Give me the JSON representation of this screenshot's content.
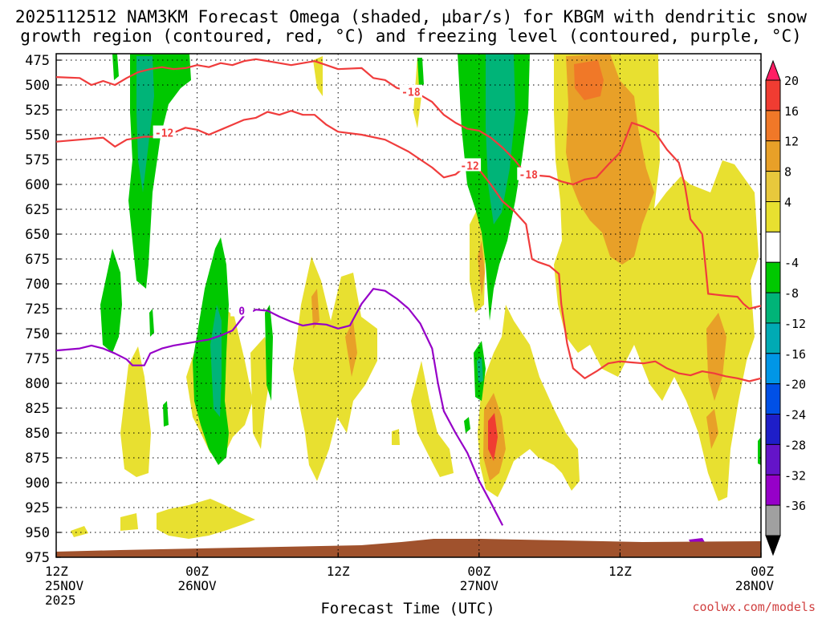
{
  "title_line1": "2025112512 NAM3KM Forecast Omega (shaded, µbar/s) for KBGM with dendritic snow",
  "title_line2": "growth region (contoured, red, °C) and freezing level (contoured, purple, °C)",
  "xlabel": "Forecast Time (UTC)",
  "credit": "coolwx.com/models",
  "chart_data": {
    "type": "heatmap",
    "title": "2025112512 NAM3KM Forecast Omega (shaded, µbar/s) for KBGM with dendritic snow growth region (contoured, red, °C) and freezing level (contoured, purple, °C)",
    "xlabel": "Forecast Time (UTC)",
    "ylabel": "",
    "x_range_hours": [
      0,
      60
    ],
    "y_axis": {
      "ticks_hPa": [
        475,
        500,
        525,
        550,
        575,
        600,
        625,
        650,
        675,
        700,
        725,
        750,
        775,
        800,
        825,
        850,
        875,
        900,
        925,
        950,
        975
      ],
      "ylim": [
        975,
        475
      ],
      "direction": "pressure decreasing upward"
    },
    "x_ticks": [
      {
        "h": 0,
        "line1": "12Z",
        "line2": "25NOV",
        "line3": "2025"
      },
      {
        "h": 12,
        "line1": "00Z",
        "line2": "26NOV",
        "line3": ""
      },
      {
        "h": 24,
        "line1": "12Z",
        "line2": "",
        "line3": ""
      },
      {
        "h": 36,
        "line1": "00Z",
        "line2": "27NOV",
        "line3": ""
      },
      {
        "h": 48,
        "line1": "12Z",
        "line2": "",
        "line3": ""
      },
      {
        "h": 60,
        "line1": "00Z",
        "line2": "28NOV",
        "line3": ""
      }
    ],
    "grid": true,
    "colorbar": {
      "labels": [
        "20",
        "16",
        "12",
        "8",
        "4",
        "-4",
        "-8",
        "-12",
        "-16",
        "-20",
        "-24",
        "-28",
        "-32",
        "-36"
      ],
      "colors": [
        "#ff1e64",
        "#f03c32",
        "#f07828",
        "#e8a028",
        "#e8c83c",
        "#e8e030",
        "#ffffff",
        "#00c800",
        "#00b478",
        "#00aab4",
        "#0096e6",
        "#0050e6",
        "#1e1ec8",
        "#6414c8",
        "#9600c8",
        "#a0a0a0",
        "#000000"
      ],
      "position": "right"
    },
    "contour_labels": [
      {
        "value": "-18",
        "color": "#f03c3c",
        "h": 30.2,
        "p": 507
      },
      {
        "value": "-12",
        "color": "#f03c3c",
        "h": 9.2,
        "p": 548
      },
      {
        "value": "-12",
        "color": "#f03c3c",
        "h": 35.2,
        "p": 581
      },
      {
        "value": "-18",
        "color": "#f03c3c",
        "h": 40.2,
        "p": 590
      },
      {
        "value": "0",
        "color": "#9600c8",
        "h": 15.8,
        "p": 727
      }
    ],
    "series": [
      {
        "name": "-12",
        "color": "#f03c3c",
        "points": [
          [
            0,
            557
          ],
          [
            2,
            555
          ],
          [
            4,
            553
          ],
          [
            5,
            562
          ],
          [
            6,
            555
          ],
          [
            7.5,
            552
          ],
          [
            8.5,
            552
          ],
          [
            10,
            548
          ],
          [
            11,
            543
          ],
          [
            12,
            545
          ],
          [
            13,
            550
          ],
          [
            14,
            545
          ],
          [
            15,
            540
          ],
          [
            16,
            535
          ],
          [
            17,
            533
          ],
          [
            18,
            527
          ],
          [
            19,
            530
          ],
          [
            20,
            526
          ],
          [
            21,
            530
          ],
          [
            22,
            530
          ],
          [
            23,
            540
          ],
          [
            24,
            547
          ],
          [
            26,
            550
          ],
          [
            28,
            555
          ],
          [
            30,
            567
          ],
          [
            31,
            575
          ],
          [
            32,
            583
          ],
          [
            33,
            593
          ],
          [
            34,
            590
          ],
          [
            35,
            580
          ],
          [
            36,
            585
          ],
          [
            37,
            600
          ],
          [
            38,
            617
          ],
          [
            39,
            627
          ],
          [
            40,
            640
          ],
          [
            40.5,
            675
          ],
          [
            41,
            678
          ],
          [
            42,
            682
          ],
          [
            42.8,
            690
          ],
          [
            43,
            720
          ],
          [
            43.5,
            760
          ],
          [
            44,
            785
          ],
          [
            45,
            795
          ],
          [
            46,
            788
          ],
          [
            47,
            780
          ],
          [
            48,
            778
          ],
          [
            49,
            779
          ],
          [
            50,
            780
          ],
          [
            51,
            778
          ],
          [
            52,
            785
          ],
          [
            53,
            790
          ],
          [
            54,
            792
          ],
          [
            55,
            788
          ],
          [
            56,
            790
          ],
          [
            57,
            793
          ],
          [
            58,
            795
          ],
          [
            59,
            798
          ],
          [
            60,
            795
          ]
        ]
      },
      {
        "name": "-18",
        "color": "#f03c3c",
        "points": [
          [
            0,
            492
          ],
          [
            2,
            493
          ],
          [
            3,
            500
          ],
          [
            4,
            496
          ],
          [
            5,
            500
          ],
          [
            6,
            493
          ],
          [
            7,
            487
          ],
          [
            8,
            484
          ],
          [
            9,
            482
          ],
          [
            10,
            484
          ],
          [
            11,
            483
          ],
          [
            12,
            480
          ],
          [
            13,
            482
          ],
          [
            14,
            478
          ],
          [
            15,
            480
          ],
          [
            16,
            476
          ],
          [
            17,
            474
          ],
          [
            18,
            476
          ],
          [
            20,
            480
          ],
          [
            21,
            478
          ],
          [
            22,
            476
          ],
          [
            23,
            480
          ],
          [
            24,
            484
          ],
          [
            26,
            483
          ],
          [
            27,
            493
          ],
          [
            28,
            495
          ],
          [
            29,
            503
          ],
          [
            30,
            506
          ],
          [
            31,
            510
          ],
          [
            32,
            517
          ],
          [
            33,
            530
          ],
          [
            34,
            538
          ],
          [
            35,
            544
          ],
          [
            36,
            546
          ],
          [
            37,
            553
          ],
          [
            38,
            563
          ],
          [
            39,
            575
          ],
          [
            40,
            590
          ],
          [
            42,
            592
          ],
          [
            43,
            597
          ],
          [
            44,
            600
          ],
          [
            45,
            595
          ],
          [
            46,
            593
          ],
          [
            47,
            580
          ],
          [
            48,
            568
          ],
          [
            49,
            538
          ],
          [
            50,
            542
          ],
          [
            51,
            548
          ],
          [
            52,
            565
          ],
          [
            53,
            578
          ],
          [
            53.5,
            600
          ],
          [
            54,
            635
          ],
          [
            55,
            650
          ],
          [
            55.3,
            685
          ],
          [
            55.5,
            710
          ],
          [
            57,
            712
          ],
          [
            58,
            713
          ],
          [
            58.5,
            720
          ],
          [
            59,
            725
          ],
          [
            60,
            722
          ]
        ]
      },
      {
        "name": "0",
        "color": "#9600c8",
        "points": [
          [
            0,
            767
          ],
          [
            2,
            765
          ],
          [
            3,
            762
          ],
          [
            4,
            765
          ],
          [
            5,
            770
          ],
          [
            6,
            776
          ],
          [
            6.5,
            782
          ],
          [
            7.5,
            782
          ],
          [
            8,
            770
          ],
          [
            9,
            765
          ],
          [
            10,
            762
          ],
          [
            11,
            760
          ],
          [
            12,
            758
          ],
          [
            13,
            756
          ],
          [
            14,
            752
          ],
          [
            15,
            747
          ],
          [
            16,
            732
          ],
          [
            17,
            726
          ],
          [
            18,
            727
          ],
          [
            19,
            733
          ],
          [
            20,
            738
          ],
          [
            21,
            742
          ],
          [
            22,
            740
          ],
          [
            23,
            741
          ],
          [
            24,
            745
          ],
          [
            25,
            742
          ],
          [
            26,
            720
          ],
          [
            27,
            705
          ],
          [
            28,
            707
          ],
          [
            29,
            715
          ],
          [
            30,
            725
          ],
          [
            31,
            740
          ],
          [
            32,
            765
          ],
          [
            32.5,
            800
          ],
          [
            33,
            828
          ],
          [
            34,
            850
          ],
          [
            35,
            870
          ],
          [
            36,
            898
          ],
          [
            37,
            920
          ],
          [
            38,
            943
          ]
        ]
      }
    ]
  }
}
